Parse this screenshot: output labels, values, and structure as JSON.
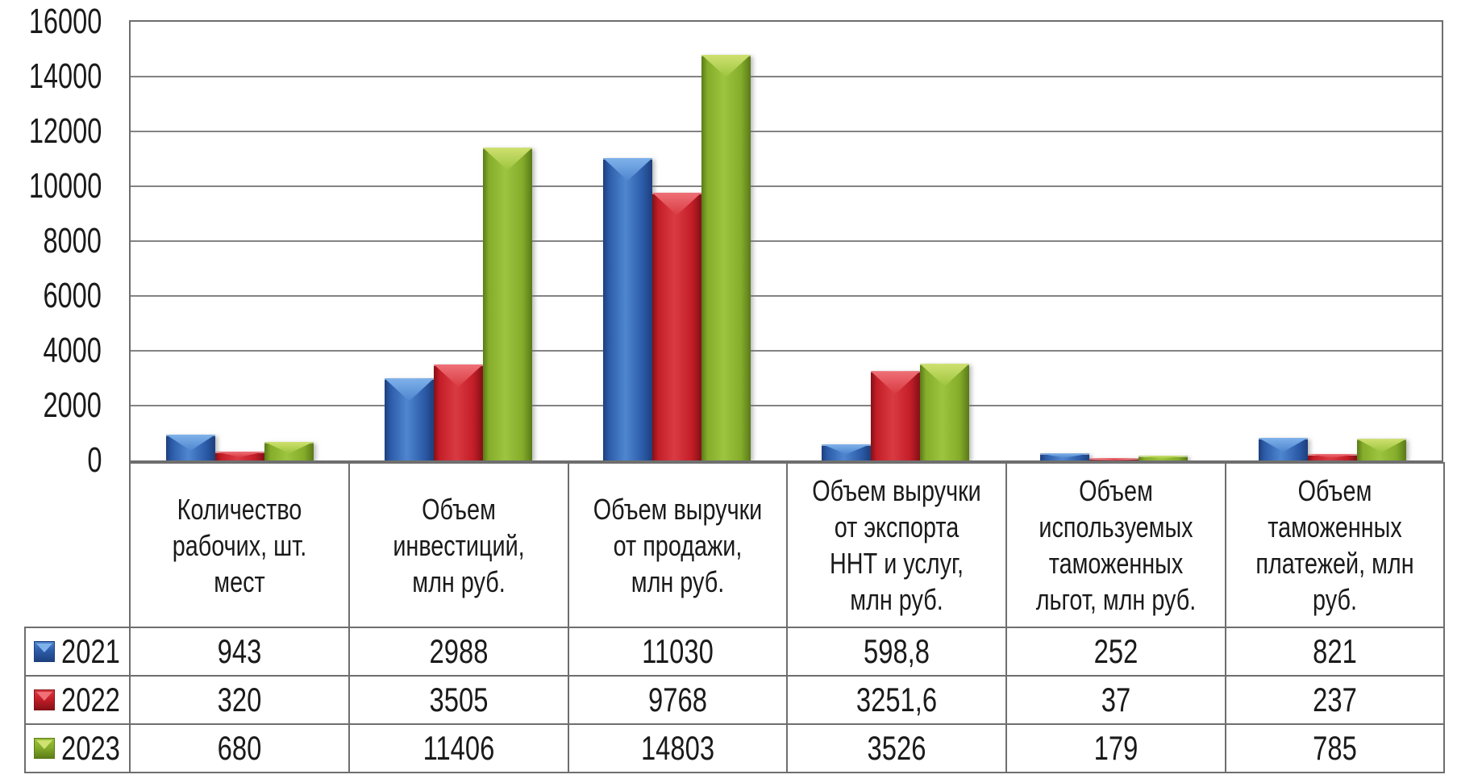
{
  "chart_data": {
    "type": "bar",
    "title": "",
    "xlabel": "",
    "ylabel": "",
    "ylim": [
      0,
      16000
    ],
    "ytick_step": 2000,
    "yticks": [
      0,
      2000,
      4000,
      6000,
      8000,
      10000,
      12000,
      14000,
      16000
    ],
    "grid": true,
    "legend_position": "table-rows-left",
    "categories": [
      "Количество рабочих, шт. мест",
      "Объем инвестиций, млн руб.",
      "Объем выручки от продажи, млн руб.",
      "Объем выручки от экспорта ННТ и услуг, млн руб.",
      "Объем используемых таможенных льгот, млн руб.",
      "Объем таможенных платежей, млн руб."
    ],
    "series": [
      {
        "name": "2021",
        "values": [
          943,
          2988,
          11030,
          598.8,
          252,
          821
        ],
        "display_values": [
          "943",
          "2988",
          "11030",
          "598,8",
          "252",
          "821"
        ],
        "color": "#2c5ca9",
        "color_dark": "#1d3f7d",
        "color_mid_light": "#4f86cf",
        "color_light": "#7fb2ea"
      },
      {
        "name": "2022",
        "values": [
          320,
          3505,
          9768,
          3251.6,
          37,
          237
        ],
        "display_values": [
          "320",
          "3505",
          "9768",
          "3251,6",
          "37",
          "237"
        ],
        "color": "#c41e28",
        "color_dark": "#841016",
        "color_mid_light": "#d93b42",
        "color_light": "#ef7077"
      },
      {
        "name": "2023",
        "values": [
          680,
          11406,
          14803,
          3526,
          179,
          785
        ],
        "display_values": [
          "680",
          "11406",
          "14803",
          "3526",
          "179",
          "785"
        ],
        "color": "#85ad2b",
        "color_dark": "#5a7a18",
        "color_mid_light": "#9cc43e",
        "color_light": "#cfe170"
      }
    ]
  },
  "colors": {
    "grid_line": "#838383",
    "plot_border": "#6e6e6e",
    "table_border": "#6e6e6e",
    "text": "#1a1a1a",
    "background": "#ffffff"
  }
}
